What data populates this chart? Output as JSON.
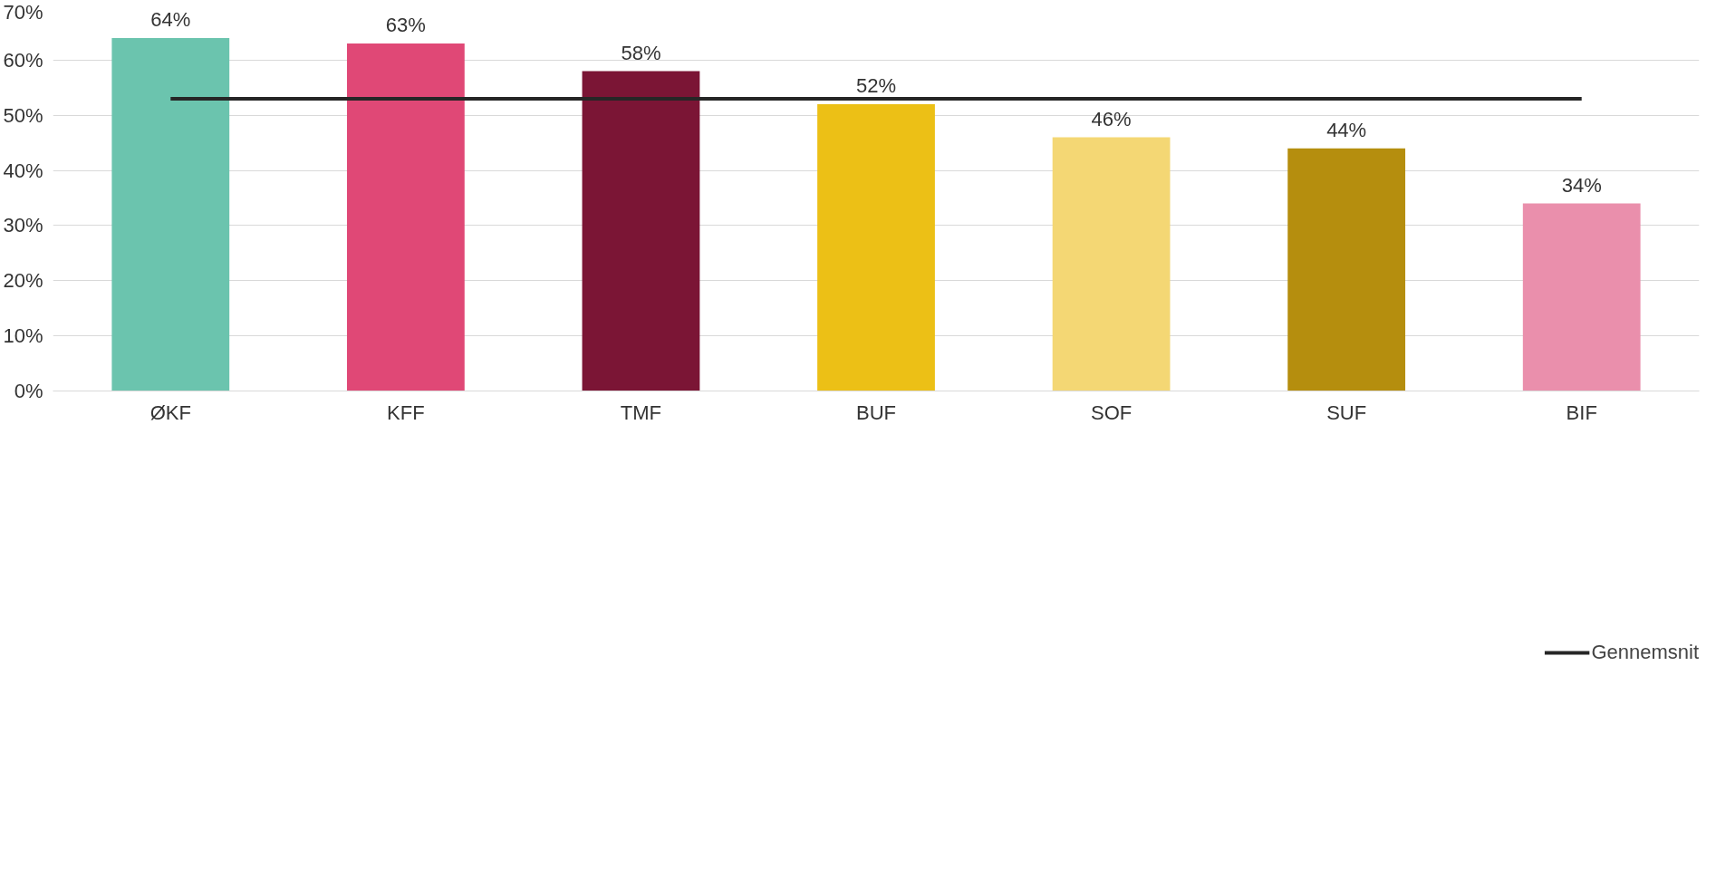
{
  "chart_data": {
    "type": "bar",
    "categories": [
      "ØKF",
      "KFF",
      "TMF",
      "BUF",
      "SOF",
      "SUF",
      "BIF"
    ],
    "series": [
      {
        "colors": [
          "#6bc4ae",
          "#e04876",
          "#7b1535",
          "#ecc016",
          "#f4d774",
          "#b58e0e",
          "#ea8fac"
        ],
        "values": [
          64,
          63,
          58,
          52,
          46,
          44,
          34
        ],
        "value_labels": [
          "64%",
          "63%",
          "58%",
          "52%",
          "46%",
          "44%",
          "34%"
        ]
      },
      {
        "type": "line",
        "name": "Gennemsnit",
        "color": "#262626",
        "values": [
          53,
          53,
          53,
          53,
          53,
          53,
          53
        ]
      }
    ],
    "ylim": [
      0,
      70
    ],
    "yticks": [
      {
        "value": 0,
        "label": "0%"
      },
      {
        "value": 10,
        "label": "10%"
      },
      {
        "value": 20,
        "label": "20%"
      },
      {
        "value": 30,
        "label": "30%"
      },
      {
        "value": 40,
        "label": "40%"
      },
      {
        "value": 50,
        "label": "50%"
      },
      {
        "value": 60,
        "label": "60%"
      },
      {
        "value": 70,
        "label": "70%"
      }
    ],
    "grid": "y",
    "legend": "bottom",
    "marker": "none",
    "line_style": "solid"
  }
}
